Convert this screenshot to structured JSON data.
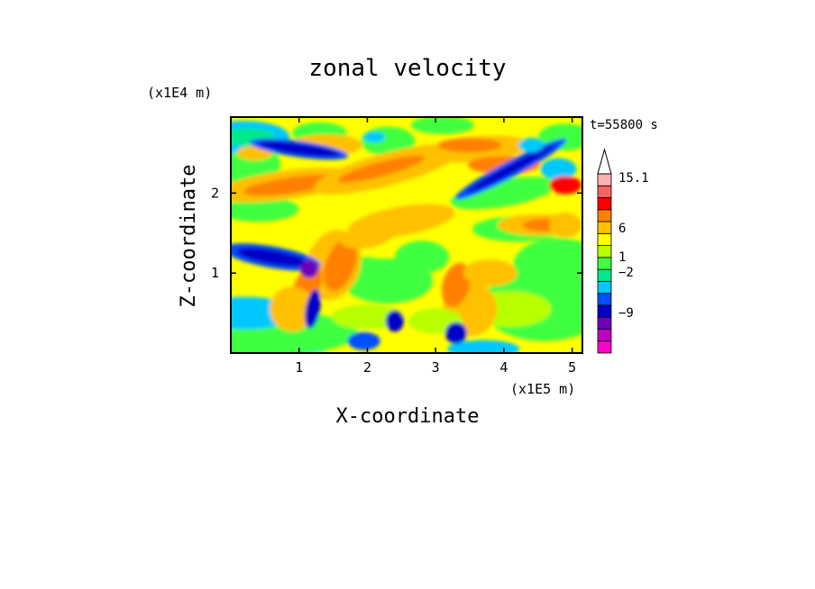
{
  "chart_data": {
    "type": "heatmap",
    "title": "zonal velocity",
    "xlabel": "X-coordinate",
    "ylabel": "Z-coordinate",
    "x_unit": "(x1E5 m)",
    "y_unit": "(x1E4 m)",
    "time_label": "t=55800 s",
    "xlim": [
      0,
      5.15
    ],
    "ylim": [
      0,
      2.95
    ],
    "x_ticks": [
      1,
      2,
      3,
      4,
      5
    ],
    "y_ticks": [
      1,
      2
    ],
    "colorbar": {
      "labels": [
        "15.1",
        "6",
        "1",
        "-2",
        "-9"
      ],
      "levels": [
        {
          "from": -15,
          "to": -12,
          "color": "#ff00cc"
        },
        {
          "from": -12,
          "to": -9,
          "color": "#c000c0"
        },
        {
          "from": -9,
          "to": -6,
          "color": "#7000b8"
        },
        {
          "from": -6,
          "to": -3,
          "color": "#0000c8"
        },
        {
          "from": -3,
          "to": -2,
          "color": "#0050ff"
        },
        {
          "from": -2,
          "to": -1,
          "color": "#00c8ff"
        },
        {
          "from": -1,
          "to": 0,
          "color": "#00e88c"
        },
        {
          "from": 0,
          "to": 0.5,
          "color": "#40ff40"
        },
        {
          "from": 0.5,
          "to": 1,
          "color": "#b8ff00"
        },
        {
          "from": 1,
          "to": 2,
          "color": "#ffff00"
        },
        {
          "from": 2,
          "to": 3,
          "color": "#ffc000"
        },
        {
          "from": 3,
          "to": 6,
          "color": "#ff8000"
        },
        {
          "from": 6,
          "to": 9,
          "color": "#ff0000"
        },
        {
          "from": 9,
          "to": 12,
          "color": "#ff6060"
        },
        {
          "from": 12,
          "to": 15.1,
          "color": "#ffb0b0"
        }
      ],
      "overflow_color": "#ffffff"
    },
    "frame_color": "#000000"
  }
}
